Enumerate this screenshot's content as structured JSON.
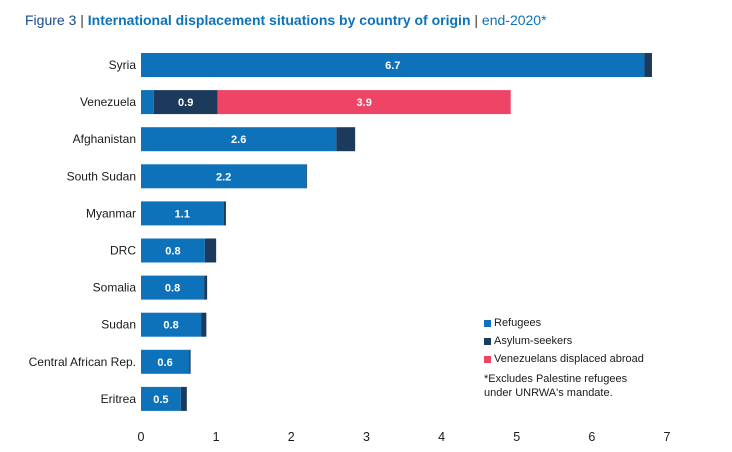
{
  "title": {
    "label": "Figure 3",
    "separator": "|",
    "main": "International displacement situations by country of origin",
    "separator2": "|",
    "subtitle": "end-2020*"
  },
  "colors": {
    "refugees": "#0d72b9",
    "asylum": "#1b3a5c",
    "venezuelans": "#ee4466"
  },
  "legend": {
    "refugees": "Refugees",
    "asylum": "Asylum-seekers",
    "venezuelans": "Venezuelans displaced abroad"
  },
  "footnote": {
    "line1": "*Excludes Palestine refugees",
    "line2": "under UNRWA's mandate."
  },
  "chart_data": {
    "type": "bar",
    "orientation": "horizontal",
    "stacked": true,
    "title": "International displacement situations by country of origin",
    "categories": [
      "Syria",
      "Venezuela",
      "Afghanistan",
      "South Sudan",
      "Myanmar",
      "DRC",
      "Somalia",
      "Sudan",
      "Central African Rep.",
      "Eritrea"
    ],
    "series": [
      {
        "name": "Refugees",
        "values": [
          6.7,
          0.17,
          2.6,
          2.2,
          1.1,
          0.85,
          0.84,
          0.8,
          0.64,
          0.53
        ]
      },
      {
        "name": "Asylum-seekers",
        "values": [
          0.1,
          0.85,
          0.25,
          0.01,
          0.03,
          0.15,
          0.04,
          0.07,
          0.02,
          0.08
        ]
      },
      {
        "name": "Venezuelans displaced abroad",
        "values": [
          0,
          3.9,
          0,
          0,
          0,
          0,
          0,
          0,
          0,
          0
        ]
      }
    ],
    "labels": [
      [
        "6.7",
        null,
        null
      ],
      [
        null,
        "0.9",
        "3.9"
      ],
      [
        "2.6",
        null,
        null
      ],
      [
        "2.2",
        null,
        null
      ],
      [
        "1.1",
        null,
        null
      ],
      [
        "0.8",
        null,
        null
      ],
      [
        "0.8",
        null,
        null
      ],
      [
        "0.8",
        null,
        null
      ],
      [
        "0.6",
        null,
        null
      ],
      [
        "0.5",
        null,
        null
      ]
    ],
    "xlim": [
      0,
      7
    ],
    "xticks": [
      "0",
      "1",
      "2",
      "3",
      "4",
      "5",
      "6",
      "7"
    ],
    "grid": false,
    "legend_position": "bottom-right"
  }
}
